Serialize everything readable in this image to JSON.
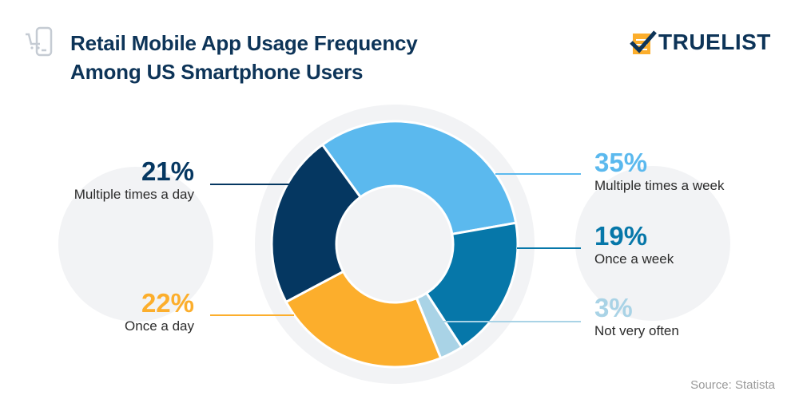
{
  "header": {
    "title_line1": "Retail Mobile App Usage Frequency",
    "title_line2": "Among US Smartphone Users",
    "icon": "mobile-shopping-cart-icon"
  },
  "logo": {
    "text": "TRUELIST",
    "icon": "checklist-icon"
  },
  "source": "Source: Statista",
  "colors": {
    "title": "#0d3458",
    "navy": "#053761",
    "light_blue": "#5bb9ee",
    "teal": "#0677a9",
    "pale_blue": "#a9d3e6",
    "orange": "#fcae2c",
    "bg_circle": "#f2f3f5"
  },
  "labels": {
    "multiple_day": {
      "pct": "21%",
      "text": "Multiple times a day"
    },
    "once_day": {
      "pct": "22%",
      "text": "Once a day"
    },
    "multiple_week": {
      "pct": "35%",
      "text": "Multiple times a week"
    },
    "once_week": {
      "pct": "19%",
      "text": "Once a week"
    },
    "not_often": {
      "pct": "3%",
      "text": "Not very often"
    }
  },
  "chart_data": {
    "type": "pie",
    "subtype": "donut",
    "title": "Retail Mobile App Usage Frequency Among US Smartphone Users",
    "categories": [
      "Multiple times a day",
      "Once a day",
      "Multiple times a week",
      "Once a week",
      "Not very often"
    ],
    "values": [
      21,
      22,
      35,
      19,
      3
    ],
    "unit": "%",
    "colors": [
      "#053761",
      "#fcae2c",
      "#5bb9ee",
      "#0677a9",
      "#a9d3e6"
    ],
    "source": "Statista"
  }
}
